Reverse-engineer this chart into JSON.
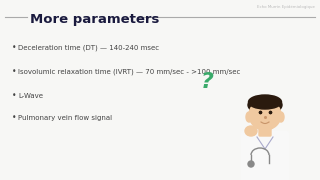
{
  "title": "More parameters",
  "bg_color": "#f7f7f5",
  "title_color": "#1a1a3e",
  "title_fontsize": 9.5,
  "line_color": "#aaaaaa",
  "bullet_color": "#444444",
  "bullets": [
    "Deceleration time (DT) — 140-240 msec",
    "Isovolumic relaxation time (IVRT) — 70 mm/sec - >100 mm/sec",
    "L-Wave",
    "Pulmonary vein flow signal"
  ],
  "bullet_fontsize": 5.0,
  "subtitle_text": "Echo Murrin Epidémiologique",
  "subtitle_fontsize": 2.8,
  "subtitle_color": "#bbbbbb",
  "question_mark_color": "#3aaa6a",
  "question_mark_fontsize": 16,
  "skin_color": "#f0c9a0",
  "hair_color": "#2a1a0e",
  "coat_color": "#f8f8f8",
  "coat_edge_color": "#cccccc"
}
